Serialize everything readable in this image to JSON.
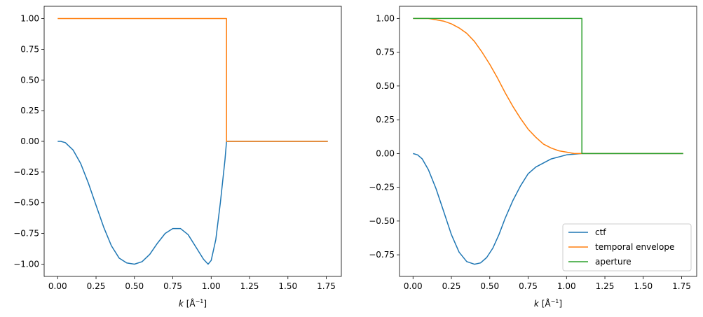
{
  "colors": {
    "blue": "#1f77b4",
    "orange": "#ff7f0e",
    "green": "#2ca02c"
  },
  "chart_data": [
    {
      "type": "line",
      "xlabel_var": "k",
      "xlabel_unit": "[Å",
      "xlabel_exp": "−1",
      "xlabel_close": "]",
      "xlim": [
        -0.088,
        1.848
      ],
      "ylim": [
        -1.1,
        1.1
      ],
      "xticks": [
        "0.00",
        "0.25",
        "0.50",
        "0.75",
        "1.00",
        "1.25",
        "1.50",
        "1.75"
      ],
      "yticks": [
        "1.00",
        "0.75",
        "0.50",
        "0.25",
        "0.00",
        "−0.25",
        "−0.50",
        "−0.75",
        "−1.00"
      ],
      "legend": "none",
      "grid": false,
      "series": [
        {
          "color": "#1f77b4",
          "x": [
            0.0,
            0.02,
            0.05,
            0.1,
            0.15,
            0.2,
            0.25,
            0.3,
            0.35,
            0.4,
            0.45,
            0.5,
            0.55,
            0.6,
            0.65,
            0.7,
            0.75,
            0.8,
            0.85,
            0.9,
            0.95,
            0.98,
            1.0,
            1.03,
            1.06,
            1.09,
            1.1,
            1.101,
            1.3,
            1.5,
            1.76
          ],
          "y": [
            0.0,
            0.0,
            -0.01,
            -0.07,
            -0.18,
            -0.34,
            -0.52,
            -0.7,
            -0.85,
            -0.95,
            -0.99,
            -1.0,
            -0.98,
            -0.92,
            -0.83,
            -0.75,
            -0.71,
            -0.71,
            -0.76,
            -0.86,
            -0.96,
            -1.0,
            -0.97,
            -0.8,
            -0.5,
            -0.15,
            0.0,
            0.0,
            0.0,
            0.0,
            0.0
          ]
        },
        {
          "color": "#ff7f0e",
          "x": [
            0.0,
            1.1,
            1.1,
            1.76
          ],
          "y": [
            1.0,
            1.0,
            0.0,
            0.0
          ]
        }
      ]
    },
    {
      "type": "line",
      "xlabel_var": "k",
      "xlabel_unit": "[Å",
      "xlabel_exp": "−1",
      "xlabel_close": "]",
      "xlim": [
        -0.088,
        1.848
      ],
      "ylim": [
        -0.91,
        1.09
      ],
      "xticks": [
        "0.00",
        "0.25",
        "0.50",
        "0.75",
        "1.00",
        "1.25",
        "1.50",
        "1.75"
      ],
      "yticks": [
        "1.00",
        "0.75",
        "0.50",
        "0.25",
        "0.00",
        "−0.25",
        "−0.50",
        "−0.75"
      ],
      "legend": "lower right",
      "grid": false,
      "series": [
        {
          "name": "ctf",
          "color": "#1f77b4",
          "x": [
            0.0,
            0.03,
            0.06,
            0.1,
            0.15,
            0.2,
            0.25,
            0.3,
            0.35,
            0.4,
            0.44,
            0.48,
            0.52,
            0.56,
            0.6,
            0.65,
            0.7,
            0.75,
            0.8,
            0.9,
            1.0,
            1.1,
            1.3,
            1.5,
            1.76
          ],
          "y": [
            0.0,
            -0.01,
            -0.04,
            -0.12,
            -0.26,
            -0.43,
            -0.6,
            -0.73,
            -0.8,
            -0.82,
            -0.81,
            -0.77,
            -0.7,
            -0.6,
            -0.48,
            -0.35,
            -0.24,
            -0.15,
            -0.1,
            -0.04,
            -0.01,
            0.0,
            0.0,
            0.0,
            0.0
          ]
        },
        {
          "name": "temporal envelope",
          "color": "#ff7f0e",
          "x": [
            0.0,
            0.1,
            0.15,
            0.2,
            0.25,
            0.3,
            0.35,
            0.4,
            0.45,
            0.5,
            0.55,
            0.6,
            0.65,
            0.7,
            0.75,
            0.8,
            0.85,
            0.9,
            0.95,
            1.0,
            1.05,
            1.1,
            1.3,
            1.5,
            1.76
          ],
          "y": [
            1.0,
            1.0,
            0.99,
            0.98,
            0.96,
            0.93,
            0.89,
            0.83,
            0.75,
            0.66,
            0.56,
            0.45,
            0.35,
            0.26,
            0.18,
            0.12,
            0.07,
            0.04,
            0.02,
            0.01,
            0.0,
            0.0,
            0.0,
            0.0,
            0.0
          ]
        },
        {
          "name": "aperture",
          "color": "#2ca02c",
          "x": [
            0.0,
            1.1,
            1.1,
            1.76
          ],
          "y": [
            1.0,
            1.0,
            0.0,
            0.0
          ]
        }
      ]
    }
  ]
}
